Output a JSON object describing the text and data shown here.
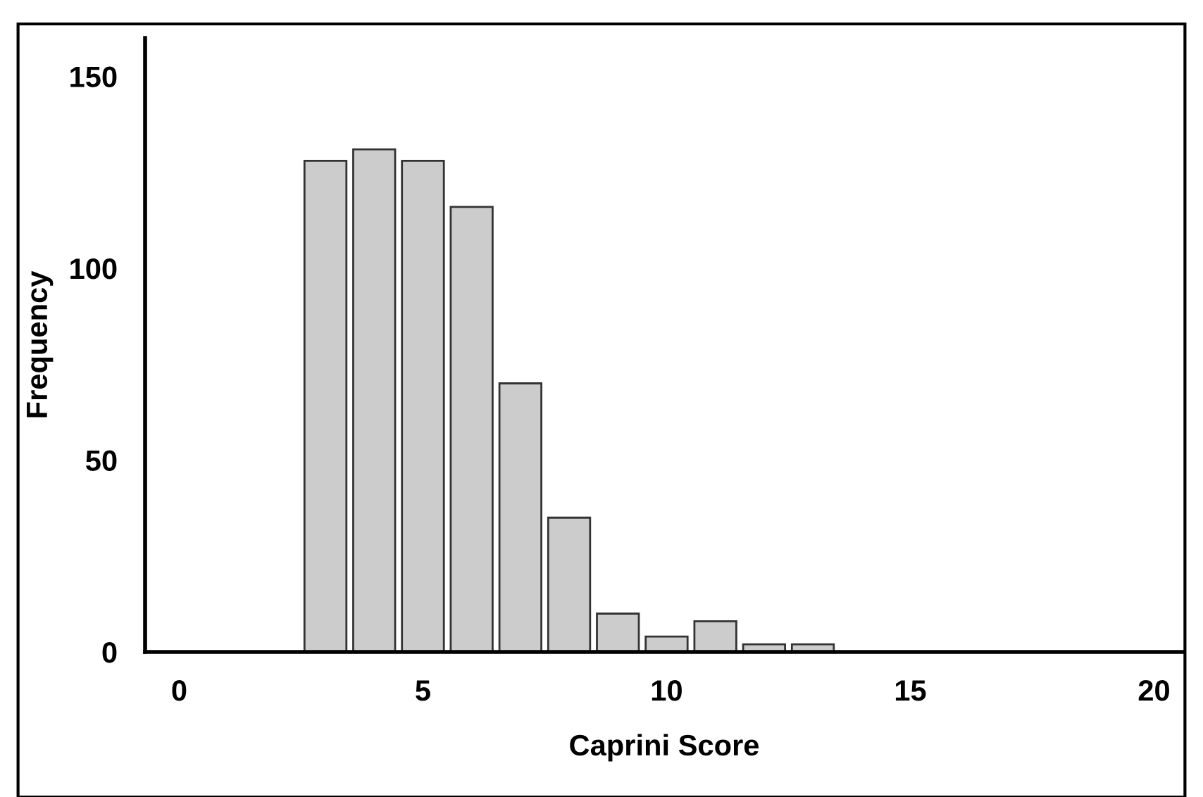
{
  "chart_data": {
    "type": "histogram",
    "xlabel": "Caprini Score",
    "ylabel": "Frequency",
    "bins": [
      2.5,
      3.5,
      4.5,
      5.5,
      6.5,
      7.5,
      8.5,
      9.5,
      10.5,
      11.5,
      12.5,
      13.5
    ],
    "values": [
      128,
      131,
      128,
      116,
      70,
      35,
      10,
      4,
      8,
      2,
      2
    ],
    "color": "#cccccc",
    "xlim": [
      -0.7,
      20.6
    ],
    "xticks": [
      0,
      5,
      10,
      15,
      20
    ],
    "ylim": [
      0,
      160
    ],
    "yticks": [
      0,
      50,
      100,
      150
    ],
    "grid": false,
    "legend": false
  }
}
